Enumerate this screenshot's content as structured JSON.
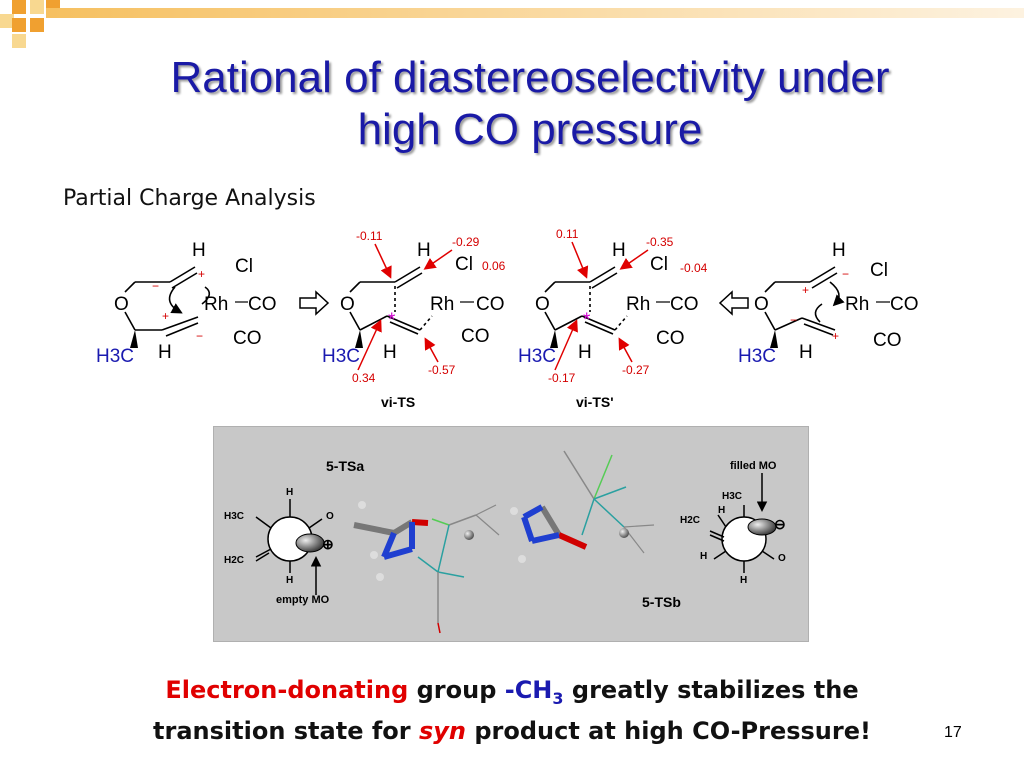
{
  "slide": {
    "title_line1": "Rational of diastereoselectivity under",
    "title_line2": "high CO pressure",
    "subtitle": "Partial Charge Analysis",
    "page_number": "17"
  },
  "scheme": {
    "structure1": {
      "H_top": "H",
      "Cl": "Cl",
      "Rh": "Rh",
      "CO1": "CO",
      "CO2": "CO",
      "O": "O",
      "H3C": "H3C",
      "H_bottom": "H",
      "plus1": "+",
      "minus1": "−",
      "plus2": "+",
      "minus2": "−"
    },
    "structure2": {
      "H_top": "H",
      "Cl": "Cl",
      "Rh": "Rh",
      "CO1": "CO",
      "CO2": "CO",
      "O": "O",
      "H3C": "H3C",
      "H_bottom": "H",
      "label": "vi-TS",
      "charges": {
        "c1": "-0.11",
        "c2": "-0.29",
        "c3": "0.06",
        "c4": "0.34",
        "c5": "-0.57"
      }
    },
    "structure3": {
      "H_top": "H",
      "Cl": "Cl",
      "Rh": "Rh",
      "CO1": "CO",
      "CO2": "CO",
      "O": "O",
      "H3C": "H3C",
      "H_bottom": "H",
      "label": "vi-TS'",
      "charges": {
        "c1": "0.11",
        "c2": "-0.35",
        "c3": "-0.04",
        "c4": "-0.17",
        "c5": "-0.27"
      }
    },
    "structure4": {
      "H_top": "H",
      "Cl": "Cl",
      "Rh": "Rh",
      "CO1": "CO",
      "CO2": "CO",
      "O": "O",
      "H3C": "H3C",
      "H_bottom": "H",
      "plus1": "+",
      "minus1": "−",
      "plus2": "+",
      "minus2": "−"
    },
    "star": "*"
  },
  "mo_figure": {
    "label_tsa": "5-TSa",
    "label_tsb": "5-TSb",
    "empty_mo": "empty MO",
    "filled_mo": "filled MO",
    "left_newman": {
      "H_top": "H",
      "H3C": "H3C",
      "O": "O",
      "H2C": "H2C",
      "H_bottom": "H",
      "sign": "⊕"
    },
    "right_newman": {
      "H3C": "H3C",
      "H_top": "H",
      "H2C": "H2C",
      "H_left": "H",
      "O": "O",
      "H_bottom": "H",
      "sign": "⊖"
    }
  },
  "conclusion": {
    "part1": "Electron-donating",
    "part2": " group ",
    "part3": "-CH",
    "part3_sub": "3",
    "part4": " greatly stabilizes the",
    "part5": "transition state for ",
    "part6": "syn",
    "part7": " product at high CO-Pressure!"
  },
  "colors": {
    "title": "#1a1aa6",
    "accent_orange": "#f0a030",
    "accent_yellow": "#f8d890",
    "emphasis_red": "#e00000",
    "methyl_blue": "#1a1ab0"
  }
}
